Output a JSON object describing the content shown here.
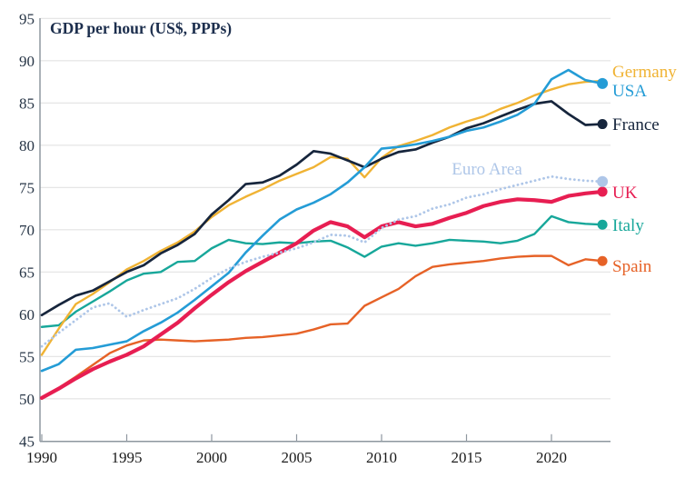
{
  "title": "GDP per hour (US$, PPPs)",
  "colors": {
    "background": "#ffffff",
    "gridline": "#e3e3e3",
    "axis": "#8e979f",
    "title_text": "#1c2e4d",
    "x_tick_text": "#1b1b1b",
    "y_tick_text": "#273546"
  },
  "end_labels": {
    "germany": "Germany",
    "usa": "USA",
    "france": "France",
    "euro_area": "Euro Area",
    "uk": "UK",
    "italy": "Italy",
    "spain": "Spain"
  },
  "chart_data": {
    "type": "line",
    "title": "GDP per hour (US$, PPPs)",
    "xlabel": "",
    "ylabel": "GDP per hour (US$, PPPs)",
    "xlim": [
      1989.8,
      2023.5
    ],
    "ylim": [
      45,
      95
    ],
    "yticks": [
      45,
      50,
      55,
      60,
      65,
      70,
      75,
      80,
      85,
      90,
      95
    ],
    "xticks": [
      1990,
      1995,
      2000,
      2005,
      2010,
      2015,
      2020
    ],
    "grid": true,
    "legend_position": "end-of-line-labels-right",
    "x": [
      1990,
      1991,
      1992,
      1993,
      1994,
      1995,
      1996,
      1997,
      1998,
      1999,
      2000,
      2001,
      2002,
      2003,
      2004,
      2005,
      2006,
      2007,
      2008,
      2009,
      2010,
      2011,
      2012,
      2013,
      2014,
      2015,
      2016,
      2017,
      2018,
      2019,
      2020,
      2021,
      2022,
      2023
    ],
    "series": [
      {
        "name": "Italy",
        "color": "#17a79a",
        "line_style": "solid",
        "line_width": 2.4,
        "end_dot_radius": 5.5,
        "values": [
          58.5,
          58.7,
          60.3,
          61.5,
          62.7,
          64.0,
          64.8,
          65.0,
          66.2,
          66.3,
          67.8,
          68.8,
          68.4,
          68.3,
          68.5,
          68.4,
          68.6,
          68.7,
          67.9,
          66.8,
          68.0,
          68.4,
          68.1,
          68.4,
          68.8,
          68.7,
          68.6,
          68.4,
          68.7,
          69.5,
          71.6,
          70.9,
          70.7,
          70.6
        ]
      },
      {
        "name": "Spain",
        "color": "#e66227",
        "line_style": "solid",
        "line_width": 2.4,
        "end_dot_radius": 5.5,
        "values": [
          50.0,
          51.3,
          52.6,
          54.0,
          55.4,
          56.3,
          56.9,
          57.0,
          56.9,
          56.8,
          56.9,
          57.0,
          57.2,
          57.3,
          57.5,
          57.7,
          58.2,
          58.8,
          58.9,
          61.0,
          62.0,
          63.0,
          64.5,
          65.6,
          65.9,
          66.1,
          66.3,
          66.6,
          66.8,
          66.9,
          66.9,
          65.8,
          66.5,
          66.3
        ]
      },
      {
        "name": "Germany",
        "color": "#f0b334",
        "line_style": "solid",
        "line_width": 2.4,
        "end_dot_radius": 3.2,
        "values": [
          55.2,
          58.3,
          61.2,
          62.4,
          63.8,
          65.3,
          66.3,
          67.5,
          68.5,
          69.8,
          71.5,
          72.9,
          73.9,
          74.8,
          75.8,
          76.6,
          77.4,
          78.6,
          78.4,
          76.2,
          78.5,
          79.9,
          80.5,
          81.2,
          82.1,
          82.8,
          83.4,
          84.3,
          85.0,
          85.9,
          86.6,
          87.2,
          87.5,
          87.6
        ]
      },
      {
        "name": "France",
        "color": "#16253c",
        "line_style": "solid",
        "line_width": 2.7,
        "end_dot_radius": 5.5,
        "values": [
          59.9,
          61.1,
          62.2,
          62.8,
          63.9,
          65.0,
          65.8,
          67.2,
          68.2,
          69.5,
          71.8,
          73.5,
          75.4,
          75.6,
          76.4,
          77.7,
          79.3,
          79.0,
          78.2,
          77.4,
          78.4,
          79.2,
          79.5,
          80.3,
          81.0,
          82.0,
          82.6,
          83.4,
          84.2,
          84.9,
          85.2,
          83.7,
          82.4,
          82.5
        ]
      },
      {
        "name": "USA",
        "color": "#249cd6",
        "line_style": "solid",
        "line_width": 2.6,
        "end_dot_radius": 6.0,
        "values": [
          53.3,
          54.1,
          55.8,
          56.0,
          56.4,
          56.8,
          58.0,
          59.0,
          60.2,
          61.7,
          63.3,
          64.9,
          67.3,
          69.3,
          71.2,
          72.4,
          73.2,
          74.2,
          75.6,
          77.4,
          79.6,
          79.8,
          80.1,
          80.5,
          81.0,
          81.7,
          82.1,
          82.8,
          83.6,
          84.9,
          87.8,
          88.9,
          87.7,
          87.3
        ]
      },
      {
        "name": "UK",
        "color": "#e71e52",
        "line_style": "solid",
        "line_width": 4.2,
        "end_dot_radius": 5.5,
        "values": [
          50.1,
          51.2,
          52.4,
          53.5,
          54.4,
          55.2,
          56.2,
          57.6,
          59.0,
          60.7,
          62.3,
          63.8,
          65.1,
          66.2,
          67.3,
          68.4,
          69.9,
          70.9,
          70.4,
          69.1,
          70.4,
          70.9,
          70.4,
          70.7,
          71.4,
          72.0,
          72.8,
          73.3,
          73.6,
          73.5,
          73.3,
          74.0,
          74.3,
          74.5
        ]
      },
      {
        "name": "Euro Area",
        "color": "#aec6e8",
        "line_style": "dotted",
        "line_width": 2.8,
        "end_dot_radius": 6.0,
        "values": [
          56.2,
          57.8,
          59.3,
          60.8,
          61.3,
          59.7,
          60.5,
          61.2,
          61.9,
          63.0,
          64.3,
          65.4,
          66.2,
          66.8,
          67.3,
          67.8,
          68.5,
          69.4,
          69.3,
          68.5,
          70.2,
          71.2,
          71.6,
          72.5,
          73.0,
          73.8,
          74.2,
          74.8,
          75.3,
          75.8,
          76.3,
          76.0,
          75.8,
          75.7
        ]
      }
    ]
  }
}
